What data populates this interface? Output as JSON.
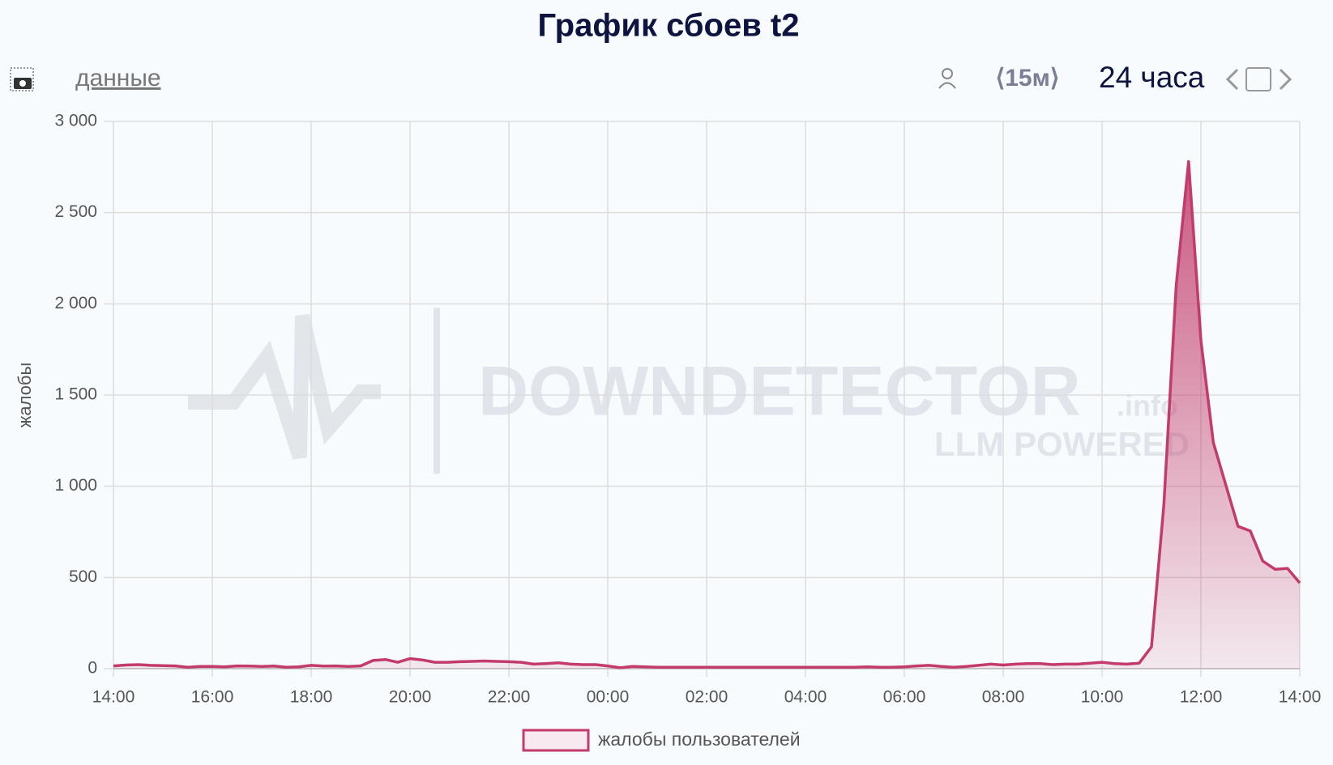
{
  "header": {
    "title": "График сбоев t2",
    "data_link": "данные",
    "interval": "⟨15м⟩",
    "range": "24 часа"
  },
  "watermark": {
    "brand": "DOWNDETECTOR",
    "suffix": ".info",
    "tagline": "LLM POWERED"
  },
  "chart_data": {
    "type": "area",
    "ylabel": "жалобы",
    "categories": [
      "14:00",
      null,
      null,
      null,
      null,
      null,
      null,
      null,
      "16:00",
      null,
      null,
      null,
      null,
      null,
      null,
      null,
      "18:00",
      null,
      null,
      null,
      null,
      null,
      null,
      null,
      "20:00",
      null,
      null,
      null,
      null,
      null,
      null,
      null,
      "22:00",
      null,
      null,
      null,
      null,
      null,
      null,
      null,
      "00:00",
      null,
      null,
      null,
      null,
      null,
      null,
      null,
      "02:00",
      null,
      null,
      null,
      null,
      null,
      null,
      null,
      "04:00",
      null,
      null,
      null,
      null,
      null,
      null,
      null,
      "06:00",
      null,
      null,
      null,
      null,
      null,
      null,
      null,
      "08:00",
      null,
      null,
      null,
      null,
      null,
      null,
      null,
      "10:00",
      null,
      null,
      null,
      null,
      null,
      null,
      null,
      "12:00",
      null,
      null,
      null,
      null,
      null,
      null,
      null,
      "14:00"
    ],
    "series": [
      {
        "name": "жалобы пользователей",
        "color": "#c23b6a",
        "values": [
          15,
          20,
          22,
          18,
          17,
          15,
          8,
          12,
          12,
          10,
          15,
          14,
          12,
          14,
          8,
          10,
          18,
          14,
          15,
          12,
          15,
          45,
          50,
          35,
          55,
          48,
          35,
          35,
          38,
          40,
          42,
          40,
          38,
          35,
          25,
          28,
          32,
          25,
          22,
          22,
          15,
          5,
          12,
          10,
          8,
          8,
          8,
          8,
          8,
          8,
          8,
          8,
          8,
          8,
          8,
          8,
          8,
          8,
          8,
          8,
          8,
          10,
          8,
          8,
          10,
          15,
          18,
          12,
          8,
          12,
          18,
          25,
          20,
          25,
          28,
          28,
          22,
          25,
          25,
          30,
          35,
          28,
          25,
          30,
          120,
          900,
          2100,
          2780,
          1800,
          1240,
          1010,
          780,
          755,
          590,
          545,
          550,
          470
        ]
      }
    ],
    "ylim": [
      0,
      3000
    ],
    "yticks": [
      0,
      500,
      {
        "value": 1000,
        "label": "1 000"
      },
      {
        "value": 1500,
        "label": "1 500"
      },
      {
        "value": 2000,
        "label": "2 000"
      },
      {
        "value": 2500,
        "label": "2 500"
      },
      {
        "value": 3000,
        "label": "3 000"
      }
    ],
    "grid": true
  }
}
